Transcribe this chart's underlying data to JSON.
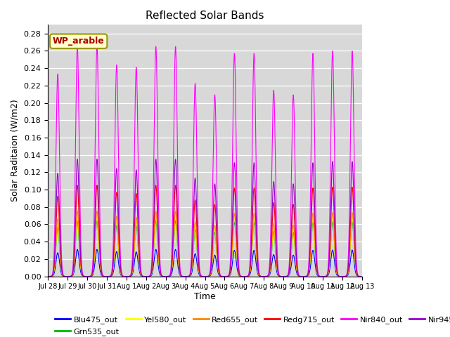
{
  "title": "Reflected Solar Bands",
  "xlabel": "Time",
  "ylabel": "Solar Raditaion (W/m2)",
  "annotation": "WP_arable",
  "ylim": [
    0.0,
    0.29
  ],
  "yticks": [
    0.0,
    0.02,
    0.04,
    0.06,
    0.08,
    0.1,
    0.12,
    0.14,
    0.16,
    0.18,
    0.2,
    0.22,
    0.24,
    0.26,
    0.28
  ],
  "colors": {
    "Blu475_out": "#0000ff",
    "Grn535_out": "#00bb00",
    "Yel580_out": "#ffff00",
    "Red655_out": "#ff8800",
    "Redg715_out": "#ff0000",
    "Nir840_out": "#ff00ff",
    "Nir945_out": "#9900cc"
  },
  "band_scales": {
    "Blu475_out": 0.031,
    "Grn535_out": 0.064,
    "Yel580_out": 0.07,
    "Red655_out": 0.075,
    "Redg715_out": 0.105,
    "Nir840_out": 0.265,
    "Nir945_out": 0.135
  },
  "n_days": 16,
  "pulse_sigma": 0.09,
  "day_peaks": [
    0.88,
    1.0,
    1.0,
    0.92,
    0.91,
    1.0,
    1.0,
    0.84,
    0.79,
    0.97,
    0.97,
    0.81,
    0.79,
    0.97,
    0.98,
    0.98
  ],
  "figsize": [
    6.4,
    4.8
  ],
  "dpi": 100,
  "background_color": "#d8d8d8",
  "grid_color": "#ffffff",
  "annotation_color": "#aa0000",
  "annotation_facecolor": "#ffffcc",
  "annotation_edgecolor": "#999900"
}
